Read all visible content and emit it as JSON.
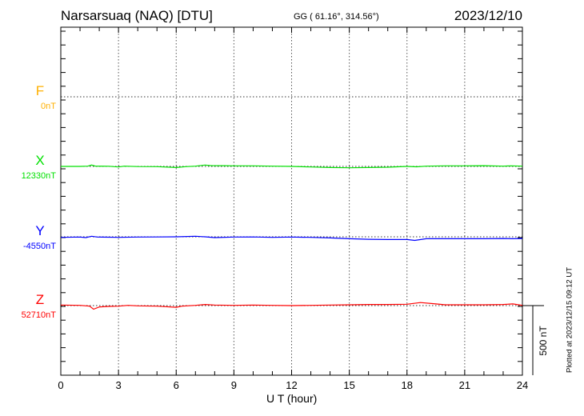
{
  "header": {
    "station": "Narsarsuaq (NAQ)  [DTU]",
    "coords": "GG ( 61.16°, 314.56°)",
    "date": "2023/12/10"
  },
  "footer": {
    "plotted": "Plotted at 2023/12/15 09:12 UT",
    "scale_label": "500 nT"
  },
  "chart_data": {
    "type": "line",
    "xlabel": "U T (hour)",
    "xlim": [
      0,
      24
    ],
    "xticks": [
      "0",
      "3",
      "6",
      "9",
      "12",
      "15",
      "18",
      "21",
      "24"
    ],
    "grid": "dotted vertical every 3 hours, dotted baseline per component",
    "scale_bar_nT": 500,
    "series": [
      {
        "name": "F",
        "baseline_label": "0nT",
        "color": "#ffb000",
        "points": []
      },
      {
        "name": "X",
        "baseline_label": "12330nT",
        "color": "#00e000",
        "points": [
          [
            0,
            0
          ],
          [
            1,
            0
          ],
          [
            1.4,
            2
          ],
          [
            1.6,
            10
          ],
          [
            1.8,
            2
          ],
          [
            2.5,
            1
          ],
          [
            3,
            -4
          ],
          [
            3.3,
            2
          ],
          [
            4,
            -1
          ],
          [
            5,
            -2
          ],
          [
            6,
            -8
          ],
          [
            6.5,
            -2
          ],
          [
            7,
            2
          ],
          [
            7.5,
            10
          ],
          [
            7.8,
            6
          ],
          [
            8.5,
            5
          ],
          [
            9,
            4
          ],
          [
            10,
            4
          ],
          [
            11,
            2
          ],
          [
            12,
            0
          ],
          [
            13,
            -4
          ],
          [
            14,
            -8
          ],
          [
            15,
            -10
          ],
          [
            16,
            -8
          ],
          [
            17,
            -6
          ],
          [
            18,
            0
          ],
          [
            18.5,
            -3
          ],
          [
            19,
            2
          ],
          [
            20,
            4
          ],
          [
            21,
            4
          ],
          [
            22,
            5
          ],
          [
            23,
            2
          ],
          [
            23.4,
            4
          ],
          [
            24,
            2
          ]
        ]
      },
      {
        "name": "Y",
        "baseline_label": "-4550nT",
        "color": "#0000ff",
        "points": [
          [
            0,
            -4
          ],
          [
            1,
            -2
          ],
          [
            1.3,
            -6
          ],
          [
            1.6,
            4
          ],
          [
            1.9,
            -2
          ],
          [
            3,
            -4
          ],
          [
            4,
            -2
          ],
          [
            5,
            -1
          ],
          [
            6,
            0
          ],
          [
            7,
            4
          ],
          [
            7.5,
            0
          ],
          [
            8,
            -6
          ],
          [
            9,
            -2
          ],
          [
            10,
            -1
          ],
          [
            11,
            -4
          ],
          [
            12,
            -2
          ],
          [
            13,
            -4
          ],
          [
            14,
            -8
          ],
          [
            15,
            -14
          ],
          [
            16,
            -18
          ],
          [
            17,
            -20
          ],
          [
            18,
            -20
          ],
          [
            18.4,
            -26
          ],
          [
            19,
            -14
          ],
          [
            20,
            -14
          ],
          [
            21,
            -14
          ],
          [
            22,
            -14
          ],
          [
            23,
            -12
          ],
          [
            23.5,
            -14
          ],
          [
            24,
            -12
          ]
        ]
      },
      {
        "name": "Z",
        "baseline_label": "52710nT",
        "color": "#ff0000",
        "points": [
          [
            0,
            4
          ],
          [
            1,
            2
          ],
          [
            1.5,
            -4
          ],
          [
            1.7,
            -26
          ],
          [
            2,
            -10
          ],
          [
            2.5,
            -6
          ],
          [
            3,
            -4
          ],
          [
            3.5,
            2
          ],
          [
            4,
            -2
          ],
          [
            5,
            -4
          ],
          [
            6,
            -12
          ],
          [
            6.3,
            -4
          ],
          [
            7,
            2
          ],
          [
            7.5,
            8
          ],
          [
            8,
            4
          ],
          [
            9,
            2
          ],
          [
            10,
            4
          ],
          [
            11,
            2
          ],
          [
            12,
            0
          ],
          [
            13,
            2
          ],
          [
            14,
            4
          ],
          [
            15,
            6
          ],
          [
            16,
            8
          ],
          [
            17,
            8
          ],
          [
            18,
            10
          ],
          [
            18.7,
            22
          ],
          [
            19.5,
            12
          ],
          [
            20,
            6
          ],
          [
            21,
            6
          ],
          [
            22,
            6
          ],
          [
            23,
            8
          ],
          [
            23.5,
            12
          ],
          [
            24,
            2
          ]
        ]
      }
    ]
  }
}
